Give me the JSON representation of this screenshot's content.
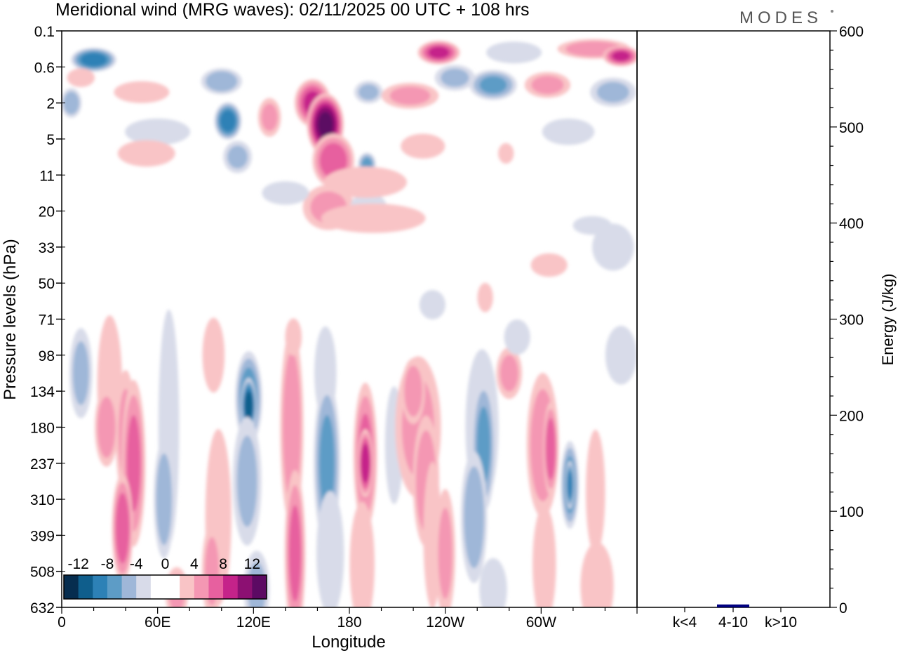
{
  "chart_data": [
    {
      "type": "heatmap",
      "title": "Meridional wind (MRG waves):  02/11/2025  00 UTC  + 108 hrs",
      "xlabel": "Longitude",
      "ylabel": "Pressure levels (hPa)",
      "x_ticks": [
        "0",
        "60E",
        "120E",
        "180",
        "120W",
        "60W"
      ],
      "x_tick_degrees": [
        0,
        60,
        120,
        180,
        240,
        300
      ],
      "x_range_degrees": [
        0,
        360
      ],
      "y_levels": [
        "0.1",
        "0.6",
        "2",
        "5",
        "11",
        "20",
        "33",
        "50",
        "71",
        "98",
        "134",
        "180",
        "237",
        "310",
        "399",
        "508",
        "632"
      ],
      "colorbar": {
        "labels": [
          "-12",
          "-8",
          "-4",
          "0",
          "4",
          "8",
          "12"
        ],
        "colors": [
          "#062d4f",
          "#0f5e8c",
          "#2d81b6",
          "#5d9cc6",
          "#9fb7d8",
          "#d8dbe9",
          "#ffffff",
          "#ffffff",
          "#f9c4c6",
          "#f497b3",
          "#e7609f",
          "#c5238a",
          "#8c1072",
          "#5c0a63"
        ]
      },
      "contour_blobs": [
        {
          "lon": 20,
          "lev": 0.8,
          "w": 15,
          "h": 0.35,
          "v": -9
        },
        {
          "lon": 12,
          "lev": 1.3,
          "w": 10,
          "h": 0.3,
          "v": 3
        },
        {
          "lon": 6,
          "lev": 2.0,
          "w": 7,
          "h": 0.45,
          "v": -5
        },
        {
          "lon": 50,
          "lev": 1.7,
          "w": 20,
          "h": 0.35,
          "v": 3
        },
        {
          "lon": 60,
          "lev": 2.8,
          "w": 25,
          "h": 0.45,
          "v": -2
        },
        {
          "lon": 100,
          "lev": 1.4,
          "w": 14,
          "h": 0.4,
          "v": -5
        },
        {
          "lon": 104,
          "lev": 2.5,
          "w": 9,
          "h": 0.55,
          "v": -9
        },
        {
          "lon": 110,
          "lev": 3.5,
          "w": 10,
          "h": 0.5,
          "v": -4
        },
        {
          "lon": 130,
          "lev": 2.4,
          "w": 8,
          "h": 0.6,
          "v": 4
        },
        {
          "lon": 157,
          "lev": 2.0,
          "w": 12,
          "h": 0.7,
          "v": 8
        },
        {
          "lon": 165,
          "lev": 2.6,
          "w": 12,
          "h": 0.9,
          "v": 12
        },
        {
          "lon": 170,
          "lev": 3.6,
          "w": 14,
          "h": 0.8,
          "v": 7
        },
        {
          "lon": 167,
          "lev": 4.9,
          "w": 18,
          "h": 0.7,
          "v": 4
        },
        {
          "lon": 192,
          "lev": 1.7,
          "w": 10,
          "h": 0.35,
          "v": -4
        },
        {
          "lon": 191,
          "lev": 3.7,
          "w": 6,
          "h": 0.35,
          "v": -6
        },
        {
          "lon": 192,
          "lev": 4.9,
          "w": 14,
          "h": 0.5,
          "v": -2
        },
        {
          "lon": 218,
          "lev": 1.8,
          "w": 20,
          "h": 0.4,
          "v": 4
        },
        {
          "lon": 236,
          "lev": 0.6,
          "w": 14,
          "h": 0.35,
          "v": 8
        },
        {
          "lon": 226,
          "lev": 3.2,
          "w": 16,
          "h": 0.4,
          "v": 3
        },
        {
          "lon": 246,
          "lev": 1.3,
          "w": 14,
          "h": 0.4,
          "v": -4
        },
        {
          "lon": 270,
          "lev": 1.5,
          "w": 16,
          "h": 0.45,
          "v": -6
        },
        {
          "lon": 283,
          "lev": 0.6,
          "w": 20,
          "h": 0.35,
          "v": -3
        },
        {
          "lon": 304,
          "lev": 1.5,
          "w": 16,
          "h": 0.4,
          "v": 4
        },
        {
          "lon": 333,
          "lev": 0.5,
          "w": 25,
          "h": 0.3,
          "v": 5
        },
        {
          "lon": 350,
          "lev": 0.7,
          "w": 12,
          "h": 0.3,
          "v": 8
        },
        {
          "lon": 345,
          "lev": 1.7,
          "w": 16,
          "h": 0.45,
          "v": -4
        },
        {
          "lon": 317,
          "lev": 2.8,
          "w": 20,
          "h": 0.45,
          "v": -2
        },
        {
          "lon": 53,
          "lev": 3.4,
          "w": 22,
          "h": 0.45,
          "v": 2
        },
        {
          "lon": 278,
          "lev": 3.4,
          "w": 6,
          "h": 0.35,
          "v": 2
        },
        {
          "lon": 215,
          "lev": 4.1,
          "w": 35,
          "h": 0.45,
          "v": -1
        },
        {
          "lon": 190,
          "lev": 4.2,
          "w": 30,
          "h": 0.5,
          "v": 3
        },
        {
          "lon": 195,
          "lev": 5.2,
          "w": 40,
          "h": 0.5,
          "v": 2
        },
        {
          "lon": 140,
          "lev": 4.5,
          "w": 18,
          "h": 0.4,
          "v": -2
        },
        {
          "lon": 290,
          "lev": 4.2,
          "w": 35,
          "h": 0.3,
          "v": -1
        },
        {
          "lon": 332,
          "lev": 5.4,
          "w": 14,
          "h": 0.3,
          "v": -3
        },
        {
          "lon": 345,
          "lev": 6.0,
          "w": 16,
          "h": 0.8,
          "v": -2
        },
        {
          "lon": 305,
          "lev": 6.5,
          "w": 14,
          "h": 0.4,
          "v": 2
        },
        {
          "lon": 30,
          "lev": 9.8,
          "w": 9,
          "h": 2.2,
          "v": 3
        },
        {
          "lon": 40,
          "lev": 11.2,
          "w": 7,
          "h": 2.0,
          "v": 4
        },
        {
          "lon": 45,
          "lev": 12.0,
          "w": 8,
          "h": 2.5,
          "v": 6
        },
        {
          "lon": 38,
          "lev": 13.8,
          "w": 7,
          "h": 1.6,
          "v": 7
        },
        {
          "lon": 28,
          "lev": 11.0,
          "w": 8,
          "h": 1.2,
          "v": 5
        },
        {
          "lon": 12,
          "lev": 9.5,
          "w": 8,
          "h": 1.4,
          "v": -4
        },
        {
          "lon": 15,
          "lev": 13.5,
          "w": 8,
          "h": 2.0,
          "v": -1
        },
        {
          "lon": 67,
          "lev": 11.0,
          "w": 8,
          "h": 4.0,
          "v": -2
        },
        {
          "lon": 64,
          "lev": 13.0,
          "w": 7,
          "h": 1.8,
          "v": -5
        },
        {
          "lon": 72,
          "lev": 15.6,
          "w": 8,
          "h": 0.8,
          "v": 4
        },
        {
          "lon": 95,
          "lev": 9.0,
          "w": 8,
          "h": 1.2,
          "v": 3
        },
        {
          "lon": 98,
          "lev": 13.5,
          "w": 10,
          "h": 3.0,
          "v": 2
        },
        {
          "lon": 94,
          "lev": 15.0,
          "w": 7,
          "h": 1.5,
          "v": 4
        },
        {
          "lon": 117,
          "lev": 10.2,
          "w": 9,
          "h": 1.4,
          "v": -7
        },
        {
          "lon": 117,
          "lev": 10.4,
          "w": 5,
          "h": 0.8,
          "v": -11
        },
        {
          "lon": 116,
          "lev": 12.5,
          "w": 10,
          "h": 2.0,
          "v": -4
        },
        {
          "lon": 122,
          "lev": 15.5,
          "w": 9,
          "h": 1.2,
          "v": -4
        },
        {
          "lon": 144,
          "lev": 11.0,
          "w": 8,
          "h": 3.0,
          "v": 5
        },
        {
          "lon": 146,
          "lev": 14.5,
          "w": 7,
          "h": 2.5,
          "v": 6
        },
        {
          "lon": 165,
          "lev": 9.5,
          "w": 8,
          "h": 1.5,
          "v": -3
        },
        {
          "lon": 166,
          "lev": 12.0,
          "w": 9,
          "h": 2.5,
          "v": -6
        },
        {
          "lon": 168,
          "lev": 14.5,
          "w": 10,
          "h": 2.0,
          "v": -3
        },
        {
          "lon": 190,
          "lev": 11.8,
          "w": 8,
          "h": 2.2,
          "v": 6
        },
        {
          "lon": 190,
          "lev": 12.0,
          "w": 5,
          "h": 1.0,
          "v": 9
        },
        {
          "lon": 188,
          "lev": 14.8,
          "w": 9,
          "h": 2.0,
          "v": 3
        },
        {
          "lon": 208,
          "lev": 11.5,
          "w": 7,
          "h": 2.0,
          "v": -2
        },
        {
          "lon": 223,
          "lev": 11.0,
          "w": 16,
          "h": 2.2,
          "v": 4
        },
        {
          "lon": 228,
          "lev": 12.5,
          "w": 9,
          "h": 2.0,
          "v": 5
        },
        {
          "lon": 220,
          "lev": 10.0,
          "w": 8,
          "h": 1.0,
          "v": 5
        },
        {
          "lon": 232,
          "lev": 14.0,
          "w": 7,
          "h": 2.5,
          "v": 2
        },
        {
          "lon": 240,
          "lev": 14.5,
          "w": 7,
          "h": 2.0,
          "v": 4
        },
        {
          "lon": 263,
          "lev": 11.0,
          "w": 12,
          "h": 2.5,
          "v": -3
        },
        {
          "lon": 264,
          "lev": 11.5,
          "w": 8,
          "h": 2.0,
          "v": -6
        },
        {
          "lon": 258,
          "lev": 13.5,
          "w": 9,
          "h": 2.0,
          "v": -5
        },
        {
          "lon": 270,
          "lev": 15.5,
          "w": 10,
          "h": 1.0,
          "v": -3
        },
        {
          "lon": 280,
          "lev": 9.5,
          "w": 9,
          "h": 0.8,
          "v": 4
        },
        {
          "lon": 285,
          "lev": 8.5,
          "w": 10,
          "h": 0.6,
          "v": -2
        },
        {
          "lon": 301,
          "lev": 11.5,
          "w": 11,
          "h": 2.2,
          "v": 5
        },
        {
          "lon": 306,
          "lev": 11.6,
          "w": 5,
          "h": 1.4,
          "v": 7
        },
        {
          "lon": 318,
          "lev": 12.6,
          "w": 6,
          "h": 1.3,
          "v": -7
        },
        {
          "lon": 318,
          "lev": 12.6,
          "w": 3,
          "h": 0.7,
          "v": -9
        },
        {
          "lon": 334,
          "lev": 12.8,
          "w": 7,
          "h": 2.0,
          "v": 3
        },
        {
          "lon": 302,
          "lev": 14.8,
          "w": 9,
          "h": 2.0,
          "v": 2
        },
        {
          "lon": 335,
          "lev": 15.4,
          "w": 12,
          "h": 1.4,
          "v": 3
        },
        {
          "lon": 350,
          "lev": 9.0,
          "w": 12,
          "h": 1.0,
          "v": -2
        },
        {
          "lon": 232,
          "lev": 7.6,
          "w": 10,
          "h": 0.5,
          "v": -2
        },
        {
          "lon": 145,
          "lev": 8.5,
          "w": 6,
          "h": 0.6,
          "v": 3
        },
        {
          "lon": 265,
          "lev": 7.4,
          "w": 6,
          "h": 0.5,
          "v": 2
        }
      ]
    },
    {
      "type": "bar",
      "categories": [
        "k<4",
        "4-10",
        "k>10"
      ],
      "values": [
        0,
        3,
        0
      ],
      "ylabel": "Energy (J/kg)",
      "ylim": [
        0,
        600
      ],
      "y_ticks": [
        "0",
        "100",
        "200",
        "300",
        "400",
        "500",
        "600"
      ],
      "bar_color": "#000080"
    }
  ],
  "brand": "MODES"
}
